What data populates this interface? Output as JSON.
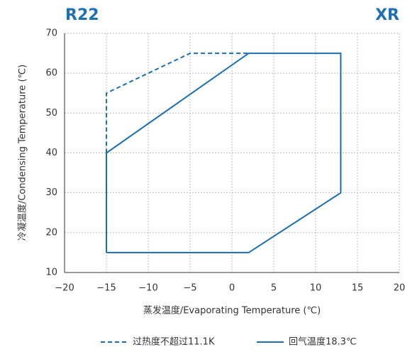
{
  "chart_data": {
    "type": "line",
    "title": "R22",
    "subtitle": "XR",
    "x_label": "蒸发温度/Evaporating Temperature (℃)",
    "y_label": "冷凝温度/Condensing Temperature (℃)",
    "xlim": [
      -20,
      20
    ],
    "xticks": [
      {
        "value": -20,
        "label": "−20"
      },
      {
        "value": -15,
        "label": "−15"
      },
      {
        "value": -10,
        "label": "−10"
      },
      {
        "value": -5,
        "label": "−5"
      },
      0,
      5,
      10,
      15,
      20
    ],
    "ylim": [
      10,
      70
    ],
    "yticks": [
      10,
      20,
      30,
      40,
      50,
      60,
      70
    ],
    "grid": true,
    "legend": "bottom",
    "series": [
      {
        "name": "过热度不超过11.1K",
        "color": "#1a6fb0",
        "dash": true,
        "x": [
          -15,
          -15,
          -5,
          2
        ],
        "values": [
          40,
          55,
          65,
          65
        ]
      },
      {
        "name": "回气温度18.3℃",
        "color": "#1a6fb0",
        "dash": false,
        "x": [
          -15,
          2,
          13,
          13,
          2,
          -15,
          -15
        ],
        "values": [
          15,
          15,
          30,
          65,
          65,
          40,
          15
        ]
      }
    ]
  }
}
